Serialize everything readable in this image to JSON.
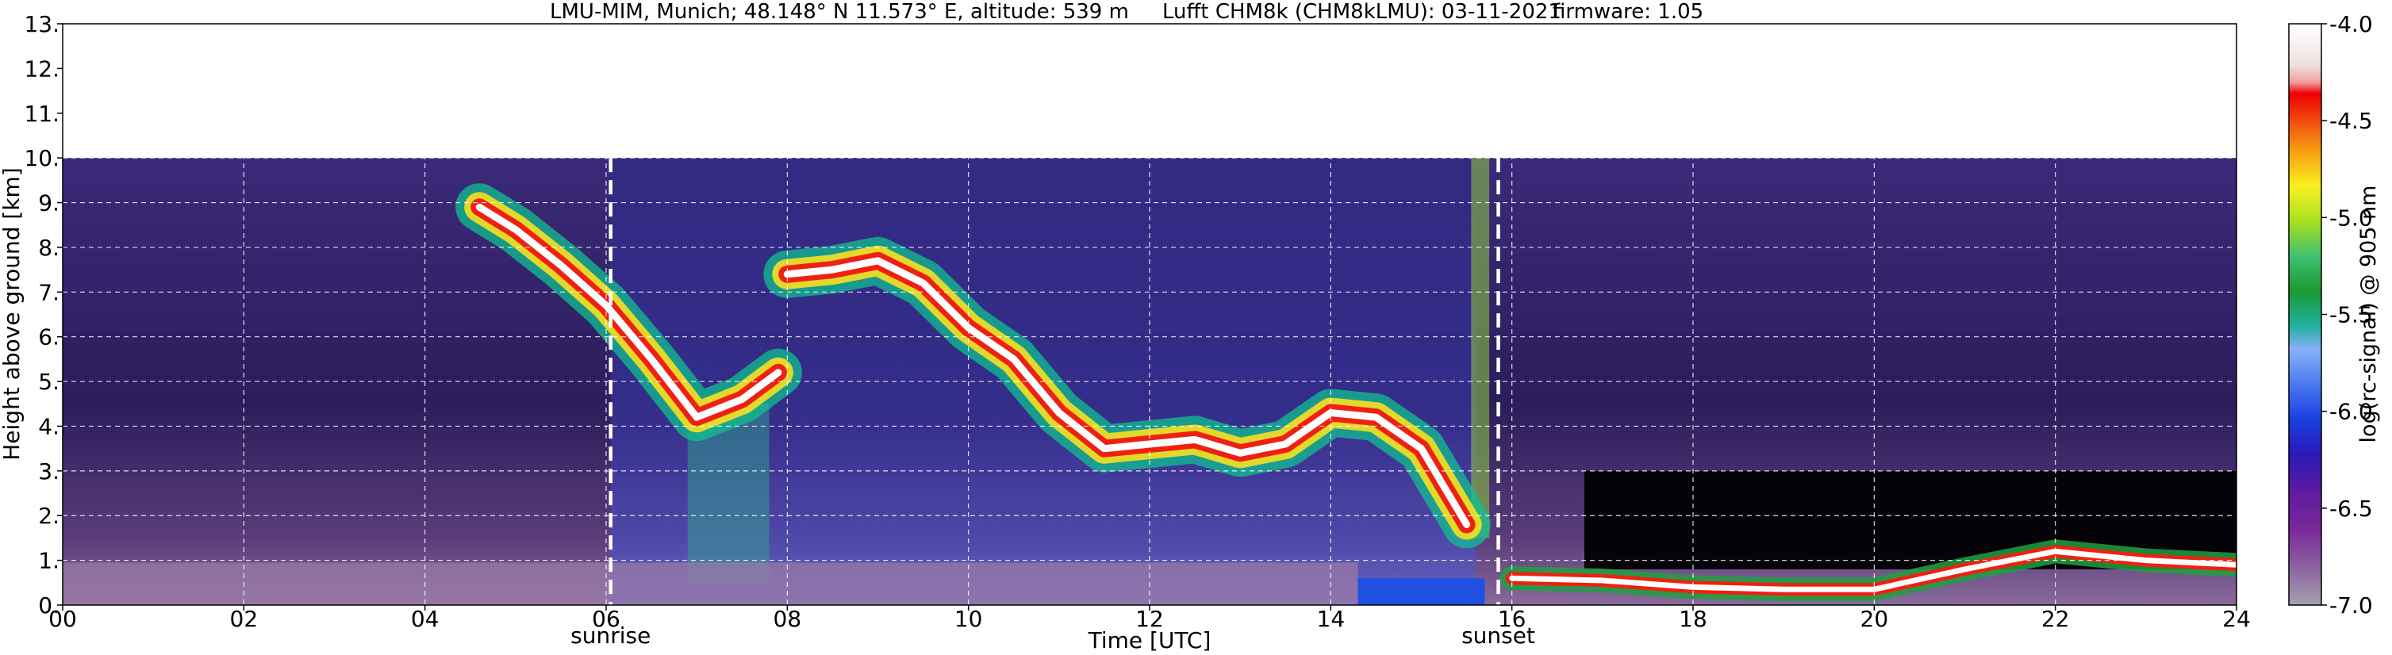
{
  "header": {
    "site": "LMU-MIM, Munich; 48.148° N 11.573° E, altitude: 539 m",
    "instrument": "Lufft CHM8k (CHM8kLMU): 03-11-2021",
    "firmware": "firmware: 1.05"
  },
  "chart_data": {
    "type": "heatmap",
    "title": "LMU-MIM, Munich; 48.148° N 11.573° E, altitude: 539 m    Lufft CHM8k (CHM8kLMU): 03-11-2021    firmware: 1.05",
    "xlabel": "Time [UTC]",
    "ylabel": "Height above ground [km]",
    "xlim": [
      0,
      24
    ],
    "ylim": [
      0,
      13
    ],
    "x_ticks": [
      "00",
      "02",
      "04",
      "06",
      "08",
      "10",
      "12",
      "14",
      "16",
      "18",
      "20",
      "22",
      "24"
    ],
    "y_ticks": [
      "0.",
      "1.",
      "2.",
      "3.",
      "4.",
      "5.",
      "6.",
      "7.",
      "8.",
      "9.",
      "10.",
      "11.",
      "12.",
      "13."
    ],
    "grid": true,
    "data_top_km": 10,
    "annotations": [
      {
        "label": "sunrise",
        "x": 6.05
      },
      {
        "label": "sunset",
        "x": 15.85
      }
    ],
    "colorbar": {
      "label": "log(rc-signal) @ 905 nm",
      "range": [
        -7.0,
        -4.0
      ],
      "ticks": [
        "-4.0",
        "-4.5",
        "-5.0",
        "-5.5",
        "-6.0",
        "-6.5",
        "-7.0"
      ]
    },
    "cloud_layer": {
      "name": "cloud base",
      "points": [
        [
          4.6,
          8.9
        ],
        [
          5.0,
          8.4
        ],
        [
          5.5,
          7.6
        ],
        [
          6.0,
          6.7
        ],
        [
          6.5,
          5.5
        ],
        [
          7.0,
          4.2
        ],
        [
          7.5,
          4.6
        ],
        [
          7.9,
          5.2
        ],
        [
          8.0,
          7.4
        ],
        [
          8.5,
          7.5
        ],
        [
          9.0,
          7.7
        ],
        [
          9.5,
          7.2
        ],
        [
          10.0,
          6.2
        ],
        [
          10.5,
          5.5
        ],
        [
          11.0,
          4.3
        ],
        [
          11.5,
          3.5
        ],
        [
          12.0,
          3.6
        ],
        [
          12.5,
          3.7
        ],
        [
          13.0,
          3.4
        ],
        [
          13.5,
          3.6
        ],
        [
          14.0,
          4.3
        ],
        [
          14.5,
          4.2
        ],
        [
          15.0,
          3.5
        ],
        [
          15.5,
          1.8
        ]
      ]
    },
    "boundary_layer": {
      "name": "surface layer",
      "points": [
        [
          16.0,
          0.6
        ],
        [
          17.0,
          0.55
        ],
        [
          18.0,
          0.4
        ],
        [
          19.0,
          0.35
        ],
        [
          20.0,
          0.35
        ],
        [
          21.0,
          0.8
        ],
        [
          21.5,
          1.0
        ],
        [
          22.0,
          1.2
        ],
        [
          23.0,
          1.0
        ],
        [
          24.0,
          0.9
        ]
      ]
    }
  }
}
